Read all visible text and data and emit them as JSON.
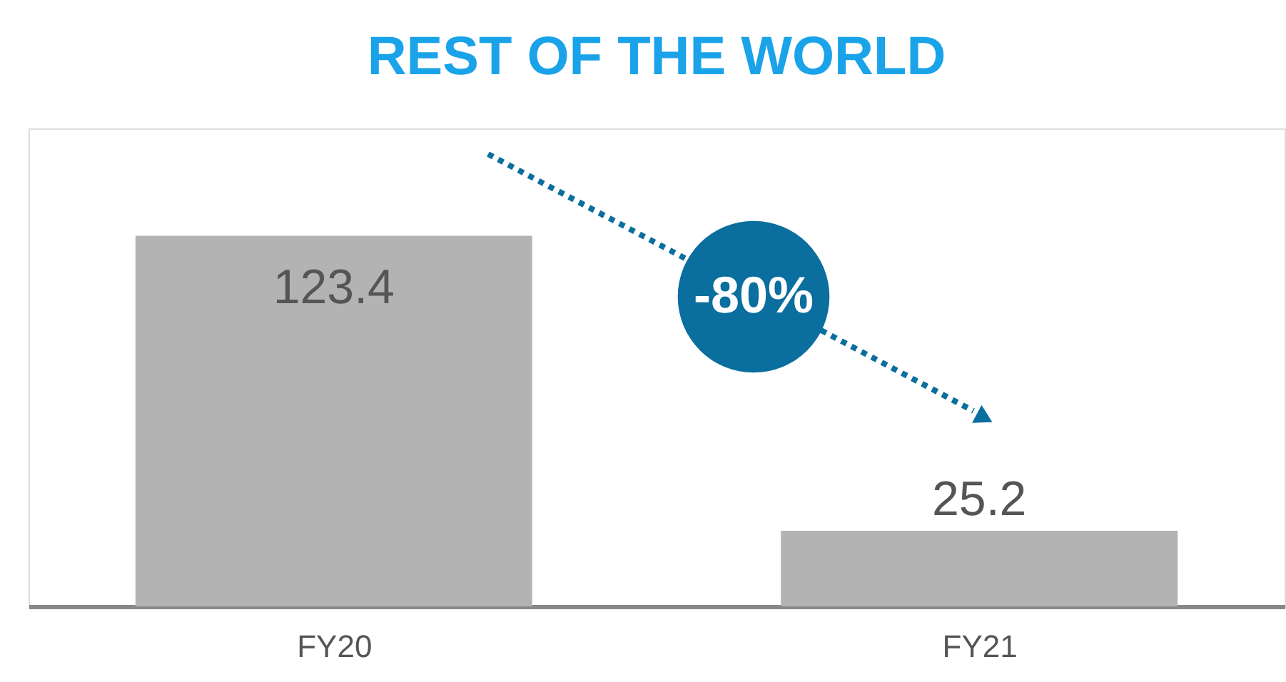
{
  "chart_data": {
    "type": "bar",
    "title": "REST OF THE WORLD",
    "categories": [
      "FY20",
      "FY21"
    ],
    "values": [
      123.4,
      25.2
    ],
    "color": "#b3b3b3",
    "data_labels": true,
    "grid": false,
    "tick_labels": "x",
    "annotations": [
      "-80%"
    ]
  }
}
